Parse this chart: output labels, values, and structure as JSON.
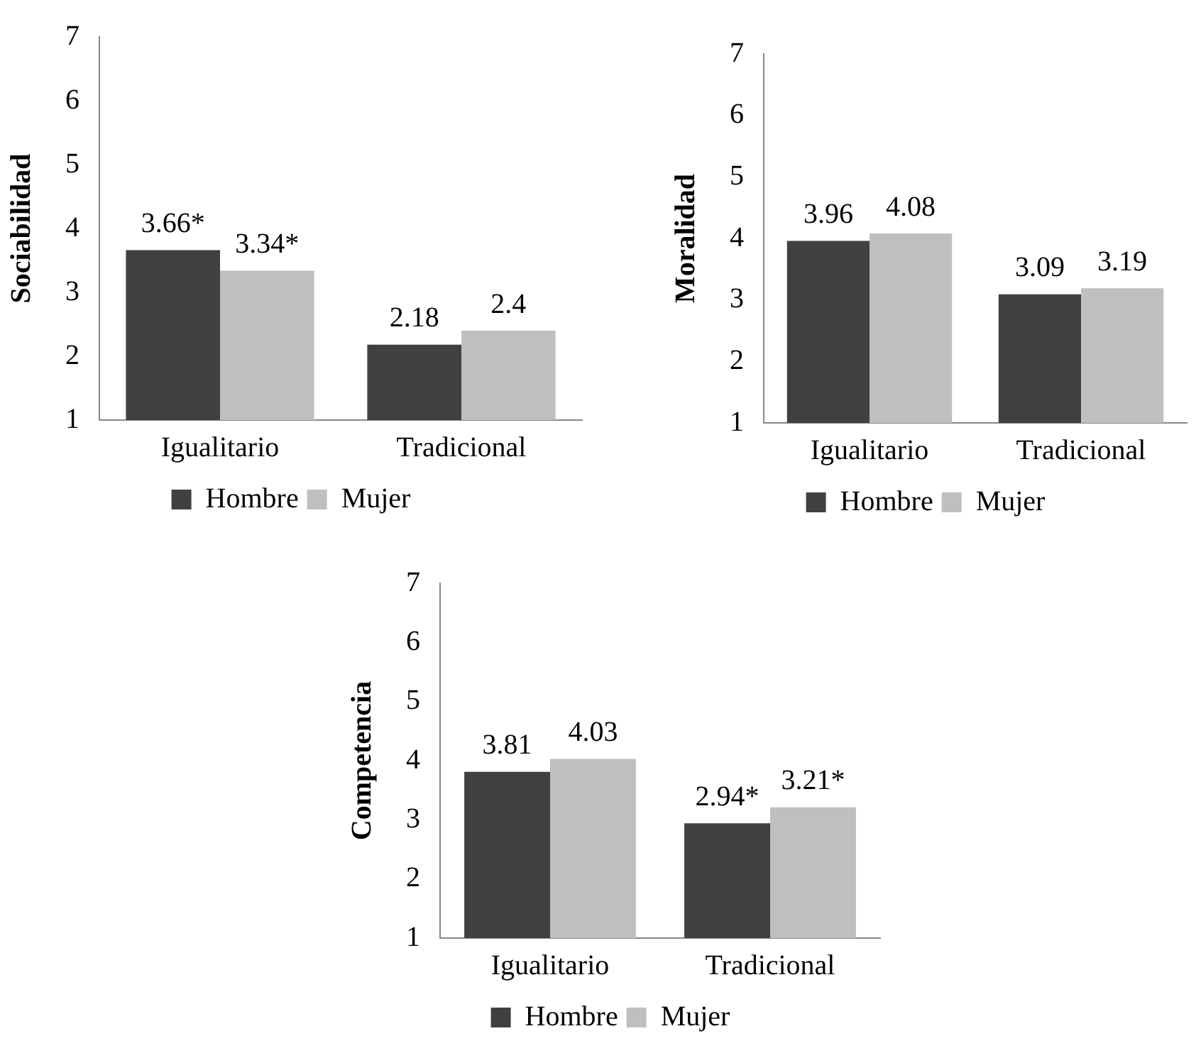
{
  "chart_data": [
    {
      "type": "bar",
      "ylabel": "Sociabilidad",
      "categories": [
        "Igualitario",
        "Tradicional"
      ],
      "series": [
        {
          "name": "Hombre",
          "color": "#404040",
          "values": [
            3.66,
            2.18
          ],
          "value_labels": [
            "3.66*",
            "2.18"
          ]
        },
        {
          "name": "Mujer",
          "color": "#bfbfbf",
          "values": [
            3.34,
            2.4
          ],
          "value_labels": [
            "3.34*",
            "2.4"
          ]
        }
      ],
      "ylim": [
        1,
        7
      ],
      "yticks": [
        1,
        2,
        3,
        4,
        5,
        6,
        7
      ],
      "grid": false,
      "legend": "bottom"
    },
    {
      "type": "bar",
      "ylabel": "Moralidad",
      "categories": [
        "Igualitario",
        "Tradicional"
      ],
      "series": [
        {
          "name": "Hombre",
          "color": "#404040",
          "values": [
            3.96,
            3.09
          ]
        },
        {
          "name": "Mujer",
          "color": "#bfbfbf",
          "values": [
            4.08,
            3.19
          ]
        }
      ],
      "ylim": [
        1,
        7
      ],
      "yticks": [
        1,
        2,
        3,
        4,
        5,
        6,
        7
      ],
      "grid": false,
      "legend": "bottom",
      "data_labels": true
    },
    {
      "type": "bar",
      "ylabel": "Competencia",
      "categories": [
        "Igualitario",
        "Tradicional"
      ],
      "series": [
        {
          "name": "Hombre",
          "color": "#404040",
          "values": [
            3.81,
            2.94
          ],
          "value_labels": [
            "3.81",
            "2.94*"
          ]
        },
        {
          "name": "Mujer",
          "color": "#bfbfbf",
          "values": [
            4.03,
            3.21
          ],
          "value_labels": [
            "4.03",
            "3.21*"
          ]
        }
      ],
      "ylim": [
        1,
        7
      ],
      "yticks": [
        1,
        2,
        3,
        4,
        5,
        6,
        7
      ],
      "grid": false,
      "legend": "bottom"
    }
  ]
}
